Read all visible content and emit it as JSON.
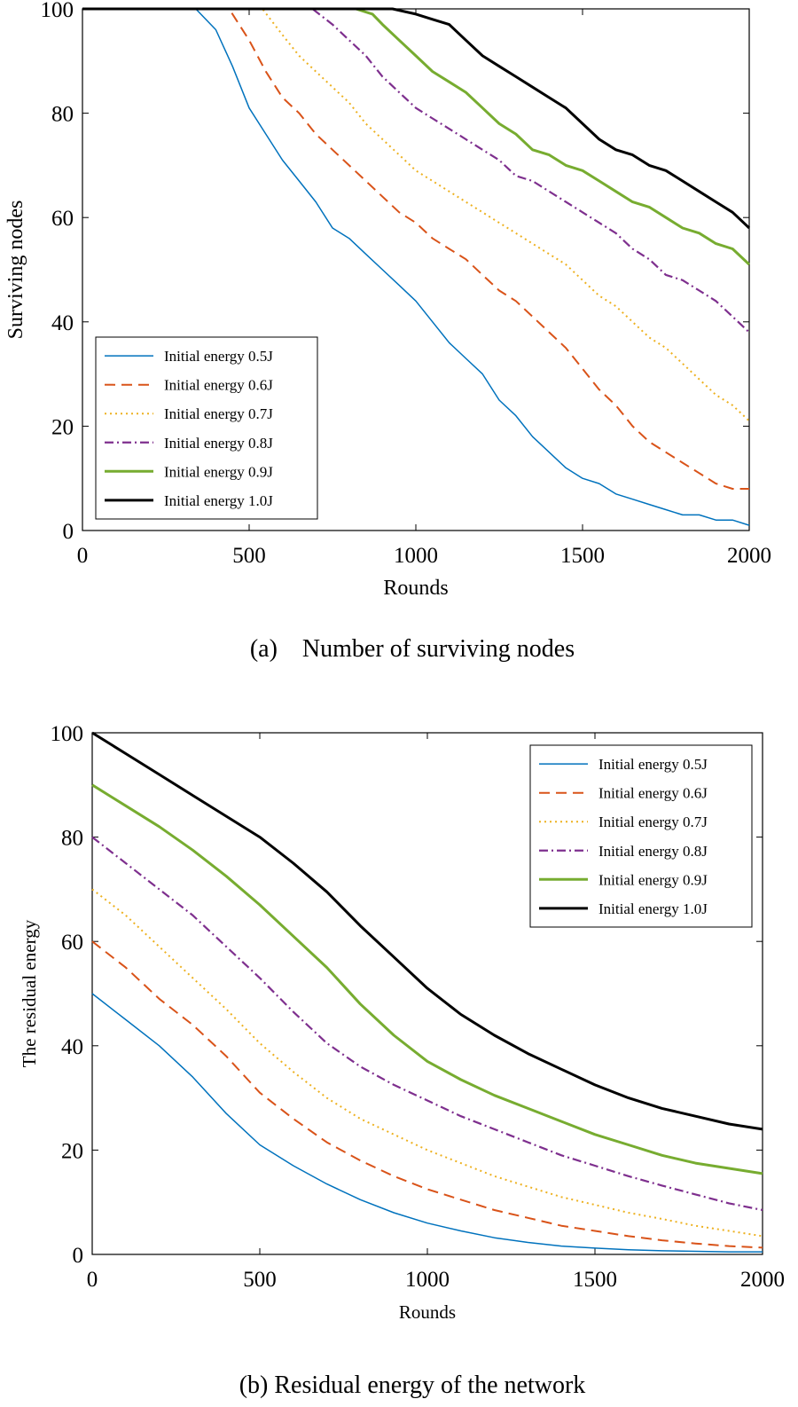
{
  "figure": {
    "caption_a": "(a)    Number of surviving nodes",
    "caption_b": "(b) Residual energy of the network"
  },
  "chart_data": [
    {
      "type": "line",
      "id": "a",
      "xlabel": "Rounds",
      "ylabel": "Surviving nodes",
      "xlim": [
        0,
        2000
      ],
      "ylim": [
        0,
        100
      ],
      "xticks": [
        0,
        500,
        1000,
        1500,
        2000
      ],
      "yticks": [
        0,
        20,
        40,
        60,
        80,
        100
      ],
      "legend_position": "bottom-left",
      "series": [
        {
          "name": "Initial energy 0.5J",
          "color": "#0072BD",
          "dash": "solid",
          "x": [
            0,
            340,
            400,
            450,
            500,
            550,
            600,
            650,
            700,
            750,
            800,
            850,
            900,
            950,
            1000,
            1050,
            1100,
            1150,
            1200,
            1250,
            1300,
            1350,
            1400,
            1450,
            1500,
            1550,
            1600,
            1650,
            1700,
            1750,
            1800,
            1850,
            1900,
            1950,
            2000
          ],
          "y": [
            100,
            100,
            96,
            89,
            81,
            76,
            71,
            67,
            63,
            58,
            56,
            53,
            50,
            47,
            44,
            40,
            36,
            33,
            30,
            25,
            22,
            18,
            15,
            12,
            10,
            9,
            7,
            6,
            5,
            4,
            3,
            3,
            2,
            2,
            1
          ]
        },
        {
          "name": "Initial energy 0.6J",
          "color": "#D95319",
          "dash": "dashed",
          "x": [
            0,
            440,
            500,
            550,
            600,
            650,
            700,
            750,
            800,
            850,
            900,
            950,
            1000,
            1050,
            1100,
            1150,
            1200,
            1250,
            1300,
            1350,
            1400,
            1450,
            1500,
            1550,
            1600,
            1650,
            1700,
            1750,
            1800,
            1850,
            1900,
            1950,
            2000
          ],
          "y": [
            100,
            100,
            94,
            88,
            83,
            80,
            76,
            73,
            70,
            67,
            64,
            61,
            59,
            56,
            54,
            52,
            49,
            46,
            44,
            41,
            38,
            35,
            31,
            27,
            24,
            20,
            17,
            15,
            13,
            11,
            9,
            8,
            8
          ]
        },
        {
          "name": "Initial energy 0.7J",
          "color": "#EDB120",
          "dash": "dotted",
          "x": [
            0,
            540,
            600,
            650,
            700,
            750,
            800,
            850,
            900,
            950,
            1000,
            1050,
            1100,
            1150,
            1200,
            1250,
            1300,
            1350,
            1400,
            1450,
            1500,
            1550,
            1600,
            1650,
            1700,
            1750,
            1800,
            1850,
            1900,
            1950,
            2000
          ],
          "y": [
            100,
            100,
            95,
            91,
            88,
            85,
            82,
            78,
            75,
            72,
            69,
            67,
            65,
            63,
            61,
            59,
            57,
            55,
            53,
            51,
            48,
            45,
            43,
            40,
            37,
            35,
            32,
            29,
            26,
            24,
            21
          ]
        },
        {
          "name": "Initial energy 0.8J",
          "color": "#7E2F8E",
          "dash": "dashdot",
          "x": [
            0,
            690,
            750,
            800,
            850,
            900,
            950,
            1000,
            1050,
            1100,
            1150,
            1200,
            1250,
            1300,
            1350,
            1400,
            1450,
            1500,
            1550,
            1600,
            1650,
            1700,
            1750,
            1800,
            1850,
            1900,
            1950,
            2000
          ],
          "y": [
            100,
            100,
            97,
            94,
            91,
            87,
            84,
            81,
            79,
            77,
            75,
            73,
            71,
            68,
            67,
            65,
            63,
            61,
            59,
            57,
            54,
            52,
            49,
            48,
            46,
            44,
            41,
            38
          ]
        },
        {
          "name": "Initial energy 0.9J",
          "color": "#77AC30",
          "dash": "solid-thick",
          "x": [
            0,
            820,
            870,
            900,
            950,
            1000,
            1050,
            1100,
            1150,
            1200,
            1250,
            1300,
            1350,
            1400,
            1450,
            1500,
            1550,
            1600,
            1650,
            1700,
            1750,
            1800,
            1850,
            1900,
            1950,
            2000
          ],
          "y": [
            100,
            100,
            99,
            97,
            94,
            91,
            88,
            86,
            84,
            81,
            78,
            76,
            73,
            72,
            70,
            69,
            67,
            65,
            63,
            62,
            60,
            58,
            57,
            55,
            54,
            51
          ]
        },
        {
          "name": "Initial energy 1.0J",
          "color": "#000000",
          "dash": "solid-thick",
          "x": [
            0,
            930,
            1000,
            1050,
            1100,
            1150,
            1200,
            1250,
            1300,
            1350,
            1400,
            1450,
            1500,
            1550,
            1600,
            1650,
            1700,
            1750,
            1800,
            1850,
            1900,
            1950,
            2000
          ],
          "y": [
            100,
            100,
            99,
            98,
            97,
            94,
            91,
            89,
            87,
            85,
            83,
            81,
            78,
            75,
            73,
            72,
            70,
            69,
            67,
            65,
            63,
            61,
            58
          ]
        }
      ]
    },
    {
      "type": "line",
      "id": "b",
      "xlabel": "Rounds",
      "ylabel": "The residual energy",
      "xlim": [
        0,
        2000
      ],
      "ylim": [
        0,
        100
      ],
      "xticks": [
        0,
        500,
        1000,
        1500,
        2000
      ],
      "yticks": [
        0,
        20,
        40,
        60,
        80,
        100
      ],
      "legend_position": "top-right",
      "series": [
        {
          "name": "Initial energy 0.5J",
          "color": "#0072BD",
          "dash": "solid",
          "x": [
            0,
            100,
            200,
            300,
            400,
            500,
            600,
            700,
            800,
            900,
            1000,
            1100,
            1200,
            1300,
            1400,
            1500,
            1600,
            1700,
            1800,
            1900,
            2000
          ],
          "y": [
            50,
            45,
            40,
            34,
            27,
            21,
            17,
            13.5,
            10.5,
            8,
            6,
            4.5,
            3.2,
            2.3,
            1.6,
            1.2,
            0.9,
            0.7,
            0.6,
            0.5,
            0.5
          ]
        },
        {
          "name": "Initial energy 0.6J",
          "color": "#D95319",
          "dash": "dashed",
          "x": [
            0,
            100,
            200,
            300,
            400,
            500,
            600,
            700,
            800,
            900,
            1000,
            1100,
            1200,
            1300,
            1400,
            1500,
            1600,
            1700,
            1800,
            1900,
            2000
          ],
          "y": [
            60,
            55,
            49,
            44,
            38,
            31,
            26,
            21.5,
            18,
            15,
            12.5,
            10.5,
            8.5,
            7,
            5.5,
            4.5,
            3.5,
            2.7,
            2.1,
            1.6,
            1.3
          ]
        },
        {
          "name": "Initial energy 0.7J",
          "color": "#EDB120",
          "dash": "dotted",
          "x": [
            0,
            100,
            200,
            300,
            400,
            500,
            600,
            700,
            800,
            900,
            1000,
            1100,
            1200,
            1300,
            1400,
            1500,
            1600,
            1700,
            1800,
            1900,
            2000
          ],
          "y": [
            70,
            65,
            59,
            53,
            47,
            40.5,
            35,
            30,
            26,
            23,
            20,
            17.5,
            15,
            13,
            11,
            9.5,
            8,
            6.8,
            5.5,
            4.5,
            3.5
          ]
        },
        {
          "name": "Initial energy 0.8J",
          "color": "#7E2F8E",
          "dash": "dashdot",
          "x": [
            0,
            100,
            200,
            300,
            400,
            500,
            600,
            700,
            800,
            900,
            1000,
            1100,
            1200,
            1300,
            1400,
            1500,
            1600,
            1700,
            1800,
            1900,
            2000
          ],
          "y": [
            80,
            75,
            70,
            65,
            59,
            53,
            46.5,
            40.5,
            36,
            32.5,
            29.5,
            26.5,
            24,
            21.5,
            19,
            17,
            15,
            13.2,
            11.5,
            9.8,
            8.5
          ]
        },
        {
          "name": "Initial energy 0.9J",
          "color": "#77AC30",
          "dash": "solid-thick",
          "x": [
            0,
            100,
            200,
            300,
            400,
            500,
            600,
            700,
            800,
            900,
            1000,
            1100,
            1200,
            1300,
            1400,
            1500,
            1600,
            1700,
            1800,
            1900,
            2000
          ],
          "y": [
            90,
            86,
            82,
            77.5,
            72.5,
            67,
            61,
            55,
            48,
            42,
            37,
            33.5,
            30.5,
            28,
            25.5,
            23,
            21,
            19,
            17.5,
            16.5,
            15.5
          ]
        },
        {
          "name": "Initial energy 1.0J",
          "color": "#000000",
          "dash": "solid-thick",
          "x": [
            0,
            100,
            200,
            300,
            400,
            500,
            600,
            700,
            800,
            900,
            1000,
            1100,
            1200,
            1300,
            1400,
            1500,
            1600,
            1700,
            1800,
            1900,
            2000
          ],
          "y": [
            100,
            96,
            92,
            88,
            84,
            80,
            75,
            69.5,
            63,
            57,
            51,
            46,
            42,
            38.5,
            35.5,
            32.5,
            30,
            28,
            26.5,
            25,
            24
          ]
        }
      ]
    }
  ]
}
